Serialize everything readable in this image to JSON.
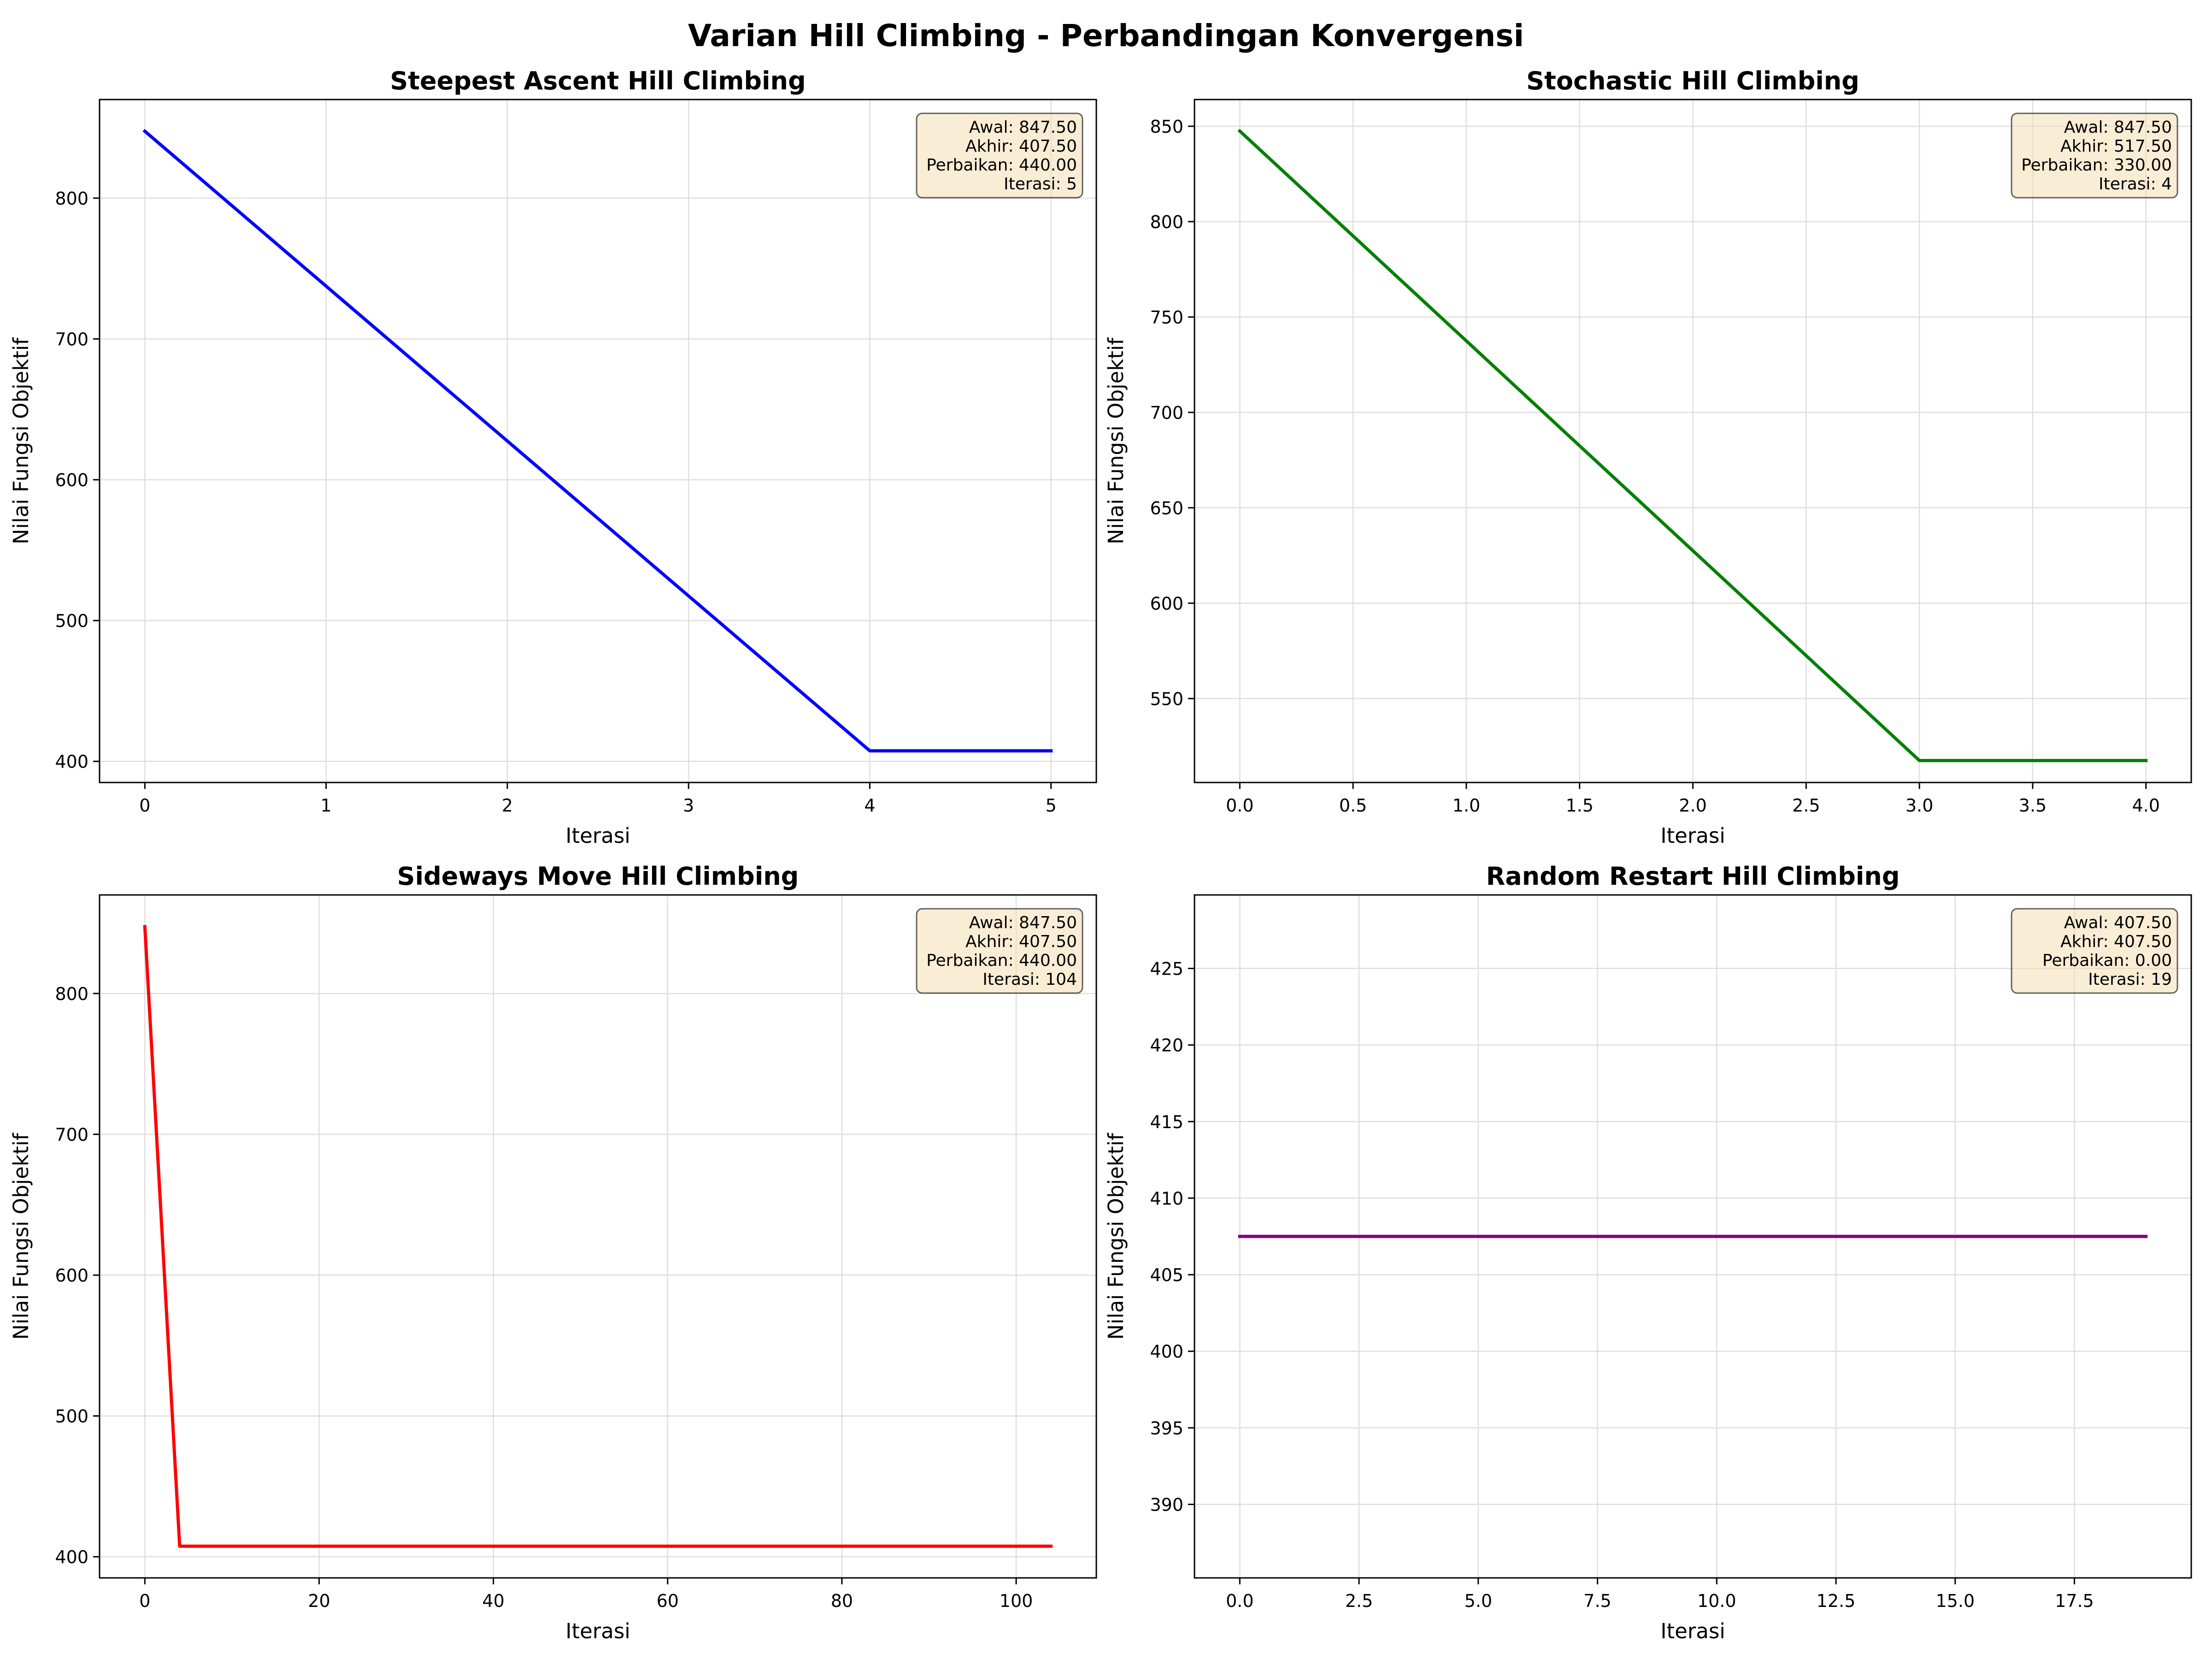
{
  "title": "Varian Hill Climbing - Perbandingan Konvergensi",
  "chart_data": [
    {
      "type": "line",
      "title": "Steepest Ascent Hill Climbing",
      "xlabel": "Iterasi",
      "ylabel": "Nilai Fungsi Objektif",
      "color": "#0000ff",
      "grid": true,
      "xlim": [
        -0.25,
        5.25
      ],
      "ylim": [
        385,
        870
      ],
      "xticks": [
        0,
        1,
        2,
        3,
        4,
        5
      ],
      "yticks": [
        400,
        500,
        600,
        700,
        800
      ],
      "x": [
        0,
        1,
        2,
        3,
        4,
        5
      ],
      "y": [
        847.5,
        737.5,
        627.5,
        517.5,
        407.5,
        407.5
      ],
      "stats_position": "top-right",
      "stats": [
        "Awal: 847.50",
        "Akhir: 407.50",
        "Perbaikan: 440.00",
        "Iterasi: 5"
      ]
    },
    {
      "type": "line",
      "title": "Stochastic Hill Climbing",
      "xlabel": "Iterasi",
      "ylabel": "Nilai Fungsi Objektif",
      "color": "#008000",
      "grid": true,
      "xlim": [
        -0.2,
        4.2
      ],
      "ylim": [
        506,
        864
      ],
      "xticks": [
        0,
        0.5,
        1,
        1.5,
        2,
        2.5,
        3,
        3.5,
        4
      ],
      "xtick_labels": [
        "0.0",
        "0.5",
        "1.0",
        "1.5",
        "2.0",
        "2.5",
        "3.0",
        "3.5",
        "4.0"
      ],
      "yticks": [
        550,
        600,
        650,
        700,
        750,
        800,
        850
      ],
      "x": [
        0,
        1,
        2,
        3,
        4
      ],
      "y": [
        847.5,
        737.5,
        627.5,
        517.5,
        517.5
      ],
      "stats_position": "top-right",
      "stats": [
        "Awal: 847.50",
        "Akhir: 517.50",
        "Perbaikan: 330.00",
        "Iterasi: 4"
      ]
    },
    {
      "type": "line",
      "title": "Sideways Move Hill Climbing",
      "xlabel": "Iterasi",
      "ylabel": "Nilai Fungsi Objektif",
      "color": "#ff0000",
      "grid": true,
      "xlim": [
        -5.2,
        109.2
      ],
      "ylim": [
        385,
        870
      ],
      "xticks": [
        0,
        20,
        40,
        60,
        80,
        100
      ],
      "yticks": [
        400,
        500,
        600,
        700,
        800
      ],
      "x": [
        0,
        1,
        2,
        3,
        4,
        104
      ],
      "y": [
        847.5,
        737.5,
        627.5,
        517.5,
        407.5,
        407.5
      ],
      "stats_position": "top-right",
      "stats": [
        "Awal: 847.50",
        "Akhir: 407.50",
        "Perbaikan: 440.00",
        "Iterasi: 104"
      ]
    },
    {
      "type": "line",
      "title": "Random Restart Hill Climbing",
      "xlabel": "Iterasi",
      "ylabel": "Nilai Fungsi Objektif",
      "color": "#800080",
      "grid": true,
      "xlim": [
        -0.95,
        19.95
      ],
      "ylim": [
        385.2,
        429.8
      ],
      "xticks": [
        0,
        2.5,
        5,
        7.5,
        10,
        12.5,
        15,
        17.5
      ],
      "xtick_labels": [
        "0.0",
        "2.5",
        "5.0",
        "7.5",
        "10.0",
        "12.5",
        "15.0",
        "17.5"
      ],
      "yticks": [
        390,
        395,
        400,
        405,
        410,
        415,
        420,
        425
      ],
      "x": [
        0,
        19
      ],
      "y": [
        407.5,
        407.5
      ],
      "stats_position": "top-right",
      "stats": [
        "Awal: 407.50",
        "Akhir: 407.50",
        "Perbaikan: 0.00",
        "Iterasi: 19"
      ]
    }
  ]
}
